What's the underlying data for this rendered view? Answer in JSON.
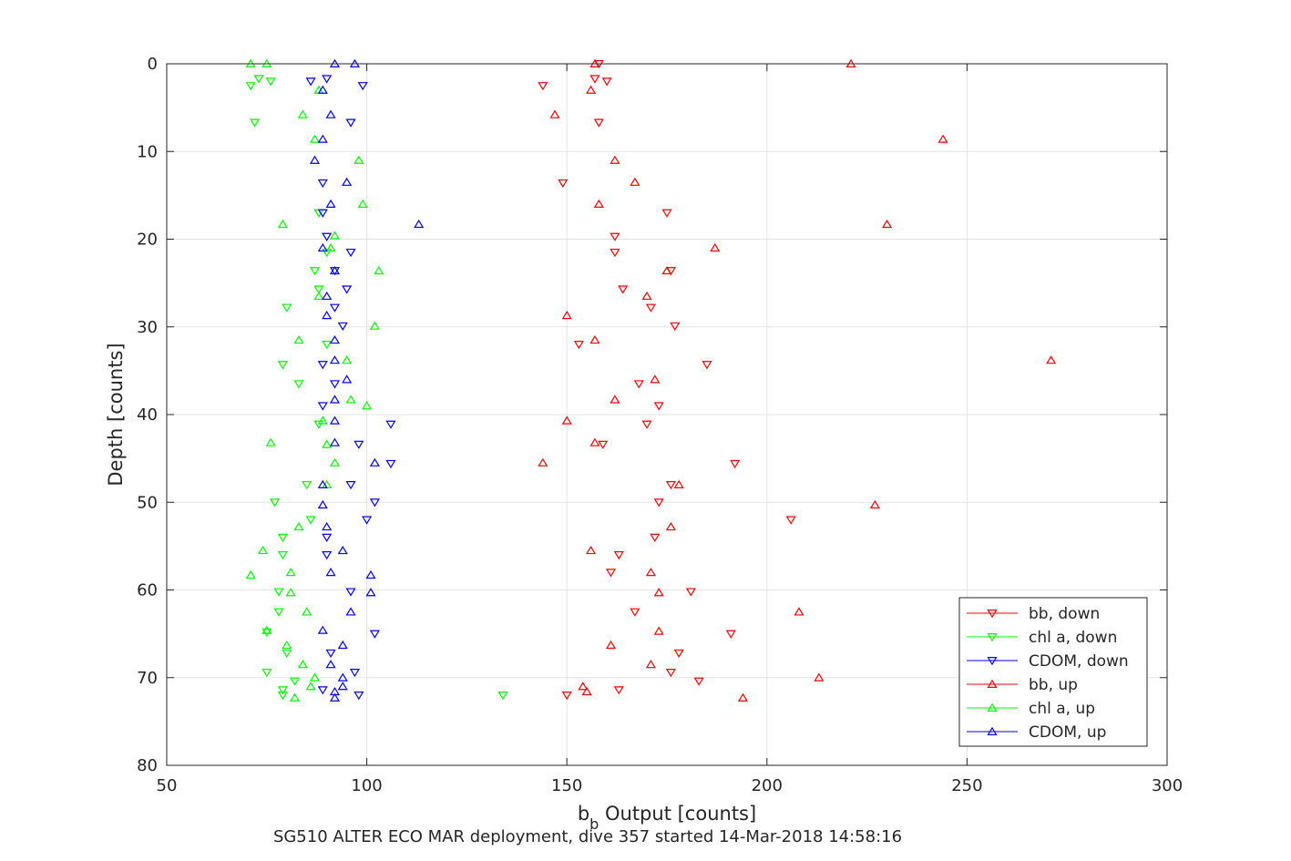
{
  "chart_data": {
    "type": "scatter",
    "title": "",
    "xlabel_main": "b",
    "xlabel_sub": "b",
    "xlabel_rest": " Output [counts]",
    "ylabel": "Depth [counts]",
    "caption": "SG510 ALTER ECO MAR deployment, dive 357 started 14-Mar-2018 14:58:16",
    "xlim": [
      50,
      300
    ],
    "ylim": [
      0,
      80
    ],
    "y_reversed": true,
    "xticks": [
      50,
      100,
      150,
      200,
      250,
      300
    ],
    "yticks": [
      0,
      10,
      20,
      30,
      40,
      50,
      60,
      70,
      80
    ],
    "grid": true,
    "legend_position": "bottom-right",
    "series": [
      {
        "name": "bb, down",
        "color": "#ff0000",
        "marker": "triangle-down",
        "points": [
          [
            158,
            0
          ],
          [
            157,
            1.7
          ],
          [
            160,
            2
          ],
          [
            144,
            2.5
          ],
          [
            158,
            6.7
          ],
          [
            149,
            13.6
          ],
          [
            175,
            17
          ],
          [
            162,
            19.7
          ],
          [
            162,
            21.5
          ],
          [
            176,
            23.6
          ],
          [
            164,
            25.7
          ],
          [
            171,
            27.8
          ],
          [
            177,
            29.9
          ],
          [
            153,
            32
          ],
          [
            185,
            34.3
          ],
          [
            168,
            36.5
          ],
          [
            173,
            39
          ],
          [
            170,
            41.1
          ],
          [
            159,
            43.4
          ],
          [
            192,
            45.6
          ],
          [
            176,
            48
          ],
          [
            173,
            50
          ],
          [
            206,
            52
          ],
          [
            172,
            54
          ],
          [
            163,
            56
          ],
          [
            161,
            58
          ],
          [
            181,
            60.2
          ],
          [
            167,
            62.5
          ],
          [
            191,
            65
          ],
          [
            178,
            67.2
          ],
          [
            176,
            69.4
          ],
          [
            183,
            70.4
          ],
          [
            163,
            71.4
          ],
          [
            150,
            72
          ]
        ]
      },
      {
        "name": "chl a, down",
        "color": "#00ff00",
        "marker": "triangle-down",
        "points": [
          [
            73,
            1.7
          ],
          [
            76,
            2
          ],
          [
            71,
            2.5
          ],
          [
            72,
            6.7
          ],
          [
            88,
            17
          ],
          [
            90,
            21.5
          ],
          [
            87,
            23.6
          ],
          [
            88,
            25.7
          ],
          [
            80,
            27.8
          ],
          [
            90,
            32
          ],
          [
            79,
            34.3
          ],
          [
            83,
            36.5
          ],
          [
            88,
            41.1
          ],
          [
            85,
            48
          ],
          [
            77,
            50
          ],
          [
            86,
            52
          ],
          [
            79,
            54
          ],
          [
            79,
            56
          ],
          [
            78,
            60.2
          ],
          [
            78,
            62.5
          ],
          [
            75,
            64.8
          ],
          [
            80,
            67.2
          ],
          [
            75,
            69.4
          ],
          [
            82,
            70.4
          ],
          [
            79,
            71.4
          ],
          [
            79,
            72
          ],
          [
            134,
            72
          ]
        ]
      },
      {
        "name": "CDOM, down",
        "color": "#0000ff",
        "marker": "triangle-down",
        "points": [
          [
            86,
            2
          ],
          [
            90,
            1.7
          ],
          [
            99,
            2.5
          ],
          [
            96,
            6.7
          ],
          [
            89,
            13.6
          ],
          [
            89,
            17
          ],
          [
            90,
            19.7
          ],
          [
            96,
            21.5
          ],
          [
            92,
            23.6
          ],
          [
            95,
            25.7
          ],
          [
            92,
            27.8
          ],
          [
            94,
            29.9
          ],
          [
            89,
            34.3
          ],
          [
            92,
            36.5
          ],
          [
            89,
            39
          ],
          [
            106,
            41.1
          ],
          [
            98,
            43.4
          ],
          [
            106,
            45.6
          ],
          [
            96,
            48
          ],
          [
            102,
            50
          ],
          [
            100,
            52
          ],
          [
            90,
            54
          ],
          [
            90,
            56
          ],
          [
            96,
            60.2
          ],
          [
            102,
            65
          ],
          [
            91,
            67.2
          ],
          [
            97,
            69.4
          ],
          [
            89,
            71.4
          ],
          [
            98,
            72
          ]
        ]
      },
      {
        "name": "bb, up",
        "color": "#ff0000",
        "marker": "triangle-up",
        "points": [
          [
            157,
            0
          ],
          [
            221,
            0
          ],
          [
            156,
            3
          ],
          [
            147,
            5.8
          ],
          [
            244,
            8.6
          ],
          [
            162,
            11
          ],
          [
            167,
            13.5
          ],
          [
            158,
            16
          ],
          [
            230,
            18.3
          ],
          [
            187,
            21
          ],
          [
            175,
            23.6
          ],
          [
            170,
            26.5
          ],
          [
            150,
            28.7
          ],
          [
            157,
            31.5
          ],
          [
            271,
            33.8
          ],
          [
            172,
            36
          ],
          [
            162,
            38.3
          ],
          [
            150,
            40.7
          ],
          [
            157,
            43.2
          ],
          [
            144,
            45.5
          ],
          [
            178,
            48
          ],
          [
            227,
            50.3
          ],
          [
            176,
            52.8
          ],
          [
            156,
            55.5
          ],
          [
            171,
            58
          ],
          [
            173,
            60.3
          ],
          [
            208,
            62.5
          ],
          [
            173,
            64.7
          ],
          [
            161,
            66.3
          ],
          [
            171,
            68.5
          ],
          [
            213,
            70
          ],
          [
            154,
            71
          ],
          [
            155,
            71.6
          ],
          [
            194,
            72.3
          ]
        ]
      },
      {
        "name": "chl a, up",
        "color": "#00ff00",
        "marker": "triangle-up",
        "points": [
          [
            71,
            0
          ],
          [
            75,
            0
          ],
          [
            88,
            3
          ],
          [
            84,
            5.8
          ],
          [
            87,
            8.6
          ],
          [
            98,
            11
          ],
          [
            99,
            16
          ],
          [
            79,
            18.3
          ],
          [
            92,
            19.6
          ],
          [
            91,
            21
          ],
          [
            103,
            23.6
          ],
          [
            88,
            26.5
          ],
          [
            102,
            29.9
          ],
          [
            83,
            31.5
          ],
          [
            95,
            33.8
          ],
          [
            96,
            38.3
          ],
          [
            100,
            39
          ],
          [
            89,
            40.7
          ],
          [
            76,
            43.2
          ],
          [
            90,
            43.4
          ],
          [
            92,
            45.5
          ],
          [
            90,
            48
          ],
          [
            83,
            52.8
          ],
          [
            74,
            55.5
          ],
          [
            81,
            58
          ],
          [
            71,
            58.3
          ],
          [
            81,
            60.3
          ],
          [
            85,
            62.5
          ],
          [
            75,
            64.6
          ],
          [
            80,
            66.3
          ],
          [
            84,
            68.5
          ],
          [
            87,
            70
          ],
          [
            86,
            71
          ],
          [
            82,
            72.3
          ]
        ]
      },
      {
        "name": "CDOM, up",
        "color": "#0000ff",
        "marker": "triangle-up",
        "points": [
          [
            92,
            0
          ],
          [
            97,
            0
          ],
          [
            89,
            3
          ],
          [
            91,
            5.8
          ],
          [
            89,
            8.6
          ],
          [
            87,
            11
          ],
          [
            95,
            13.5
          ],
          [
            91,
            16
          ],
          [
            113,
            18.3
          ],
          [
            89,
            21
          ],
          [
            92,
            23.6
          ],
          [
            90,
            26.5
          ],
          [
            90,
            28.7
          ],
          [
            92,
            31.5
          ],
          [
            92,
            33.8
          ],
          [
            95,
            36
          ],
          [
            92,
            38.3
          ],
          [
            92,
            40.7
          ],
          [
            92,
            43.2
          ],
          [
            102,
            45.5
          ],
          [
            89,
            48
          ],
          [
            89,
            50.3
          ],
          [
            90,
            52.8
          ],
          [
            94,
            55.5
          ],
          [
            91,
            58
          ],
          [
            101,
            58.3
          ],
          [
            101,
            60.3
          ],
          [
            96,
            62.5
          ],
          [
            89,
            64.6
          ],
          [
            94,
            66.3
          ],
          [
            91,
            68.5
          ],
          [
            94,
            70
          ],
          [
            94,
            71
          ],
          [
            92,
            71.6
          ],
          [
            92,
            72.3
          ]
        ]
      }
    ]
  }
}
